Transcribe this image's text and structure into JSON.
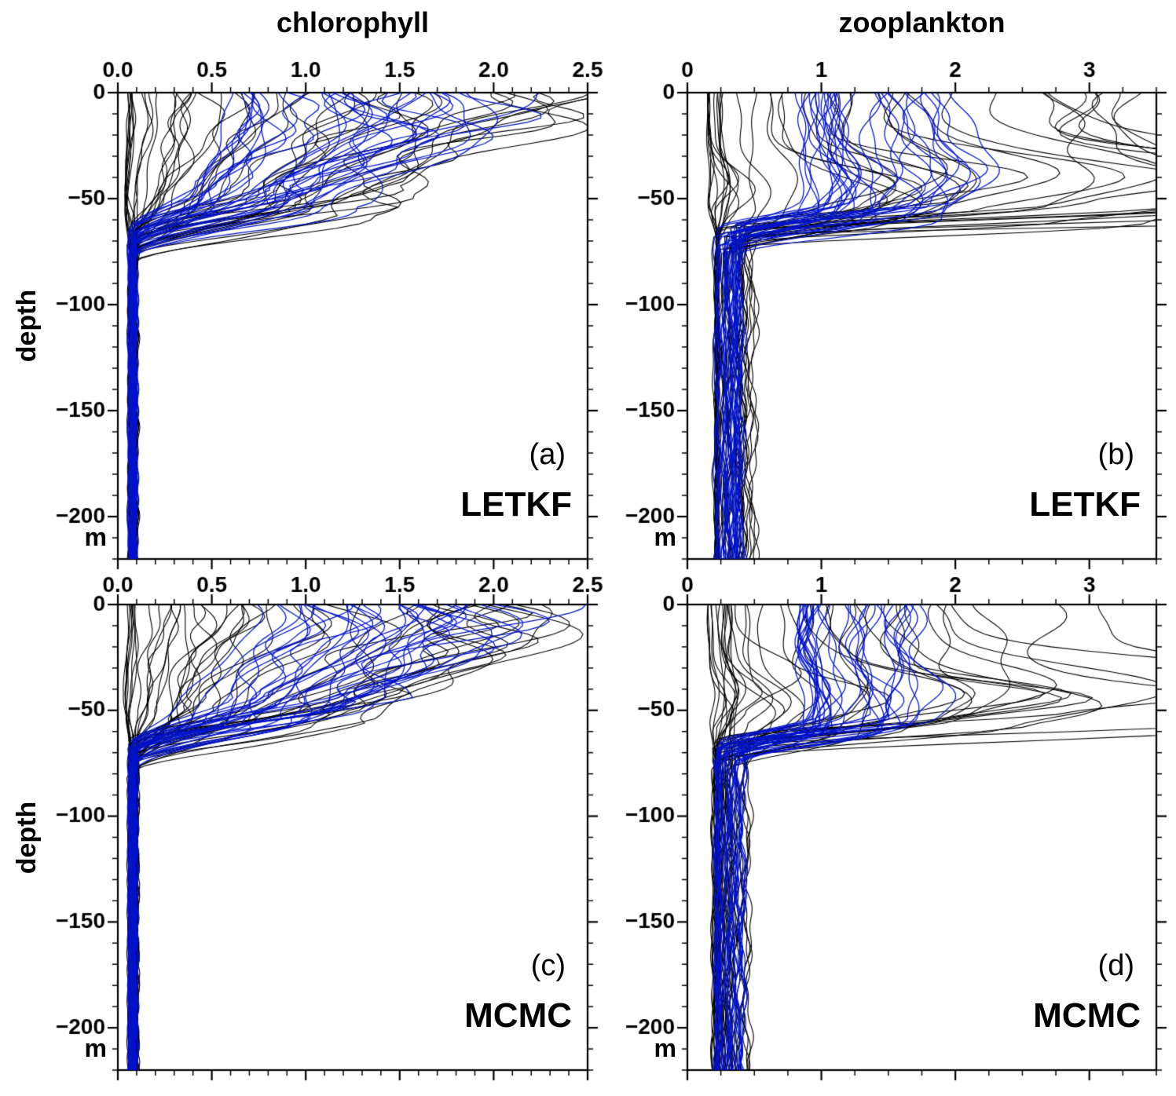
{
  "figure": {
    "ylabel": "depth",
    "y_unit_label": "m",
    "columns": [
      {
        "title": "chlorophyll"
      },
      {
        "title": "zooplankton"
      }
    ],
    "colors": {
      "frame": "#000000",
      "black_ensemble": "#000000",
      "blue_ensemble": "#0013cc"
    }
  },
  "chart_data": [
    {
      "panel": "a",
      "label": "(a)",
      "method": "LETKF",
      "variable": "chlorophyll",
      "type": "line",
      "xlim": [
        0,
        2.5
      ],
      "xticks": [
        0,
        0.5,
        1,
        1.5,
        2,
        2.5
      ],
      "xtick_labels": [
        "0.0",
        "0.5",
        "1.0",
        "1.5",
        "2.0",
        "2.5"
      ],
      "x_minor": 0.1,
      "ylim": [
        -220,
        0
      ],
      "yticks": [
        0,
        -50,
        -100,
        -150,
        -200
      ],
      "ytick_labels": [
        "0",
        "−50",
        "−100",
        "−150",
        "−200"
      ],
      "y_minor": 10,
      "x_labels_top": true,
      "x_labels_bottom": true,
      "ensemble": [
        {
          "name": "black-ensemble",
          "color": "#000000",
          "count": 46,
          "line_width": 1.1,
          "seed": 101,
          "surface": [
            0.05,
            2.15
          ],
          "surface_pow": 1.6,
          "deep": [
            0.055,
            0.105
          ],
          "mld": [
            -74,
            -56
          ],
          "noise": 0.11
        },
        {
          "name": "blue-ensemble",
          "color": "#0013cc",
          "count": 32,
          "line_width": 1.25,
          "seed": 202,
          "surface": [
            0.55,
            1.9
          ],
          "surface_pow": 1.2,
          "deep": [
            0.055,
            0.1
          ],
          "mld": [
            -70,
            -56
          ],
          "noise": 0.1
        }
      ]
    },
    {
      "panel": "b",
      "label": "(b)",
      "method": "LETKF",
      "variable": "zooplankton",
      "type": "line",
      "xlim": [
        0,
        3.5
      ],
      "xticks": [
        0,
        1,
        2,
        3
      ],
      "xtick_labels": [
        "0",
        "1",
        "2",
        "3"
      ],
      "x_minor": 0.25,
      "ylim": [
        -220,
        0
      ],
      "yticks": [
        0,
        -50,
        -100,
        -150,
        -200
      ],
      "ytick_labels": [
        "0",
        "−50",
        "−100",
        "−150",
        "−200"
      ],
      "y_minor": 10,
      "x_labels_top": true,
      "x_labels_bottom": true,
      "ensemble": [
        {
          "name": "black-ensemble",
          "color": "#000000",
          "count": 40,
          "line_width": 1.1,
          "seed": 303,
          "surface": [
            0.15,
            3.3
          ],
          "surface_pow": 2.0,
          "deep": [
            0.18,
            0.5
          ],
          "mld": [
            -60,
            -48
          ],
          "peak_amp": 1.5
        },
        {
          "name": "blue-ensemble",
          "color": "#0013cc",
          "count": 32,
          "line_width": 1.25,
          "seed": 404,
          "surface": [
            0.85,
            1.95
          ],
          "surface_pow": 1.6,
          "deep": [
            0.2,
            0.42
          ],
          "mld": [
            -58,
            -48
          ],
          "peak_amp": 0.3
        }
      ]
    },
    {
      "panel": "c",
      "label": "(c)",
      "method": "MCMC",
      "variable": "chlorophyll",
      "type": "line",
      "xlim": [
        0,
        2.5
      ],
      "xticks": [
        0,
        0.5,
        1,
        1.5,
        2,
        2.5
      ],
      "xtick_labels": [
        "0.0",
        "0.5",
        "1.0",
        "1.5",
        "2.0",
        "2.5"
      ],
      "x_minor": 0.1,
      "ylim": [
        -220,
        0
      ],
      "yticks": [
        0,
        -50,
        -100,
        -150,
        -200
      ],
      "ytick_labels": [
        "0",
        "−50",
        "−100",
        "−150",
        "−200"
      ],
      "y_minor": 10,
      "x_labels_top": false,
      "x_labels_bottom": false,
      "ensemble": [
        {
          "name": "black-ensemble",
          "color": "#000000",
          "count": 46,
          "line_width": 1.1,
          "seed": 505,
          "surface": [
            0.05,
            2.15
          ],
          "surface_pow": 1.6,
          "deep": [
            0.055,
            0.105
          ],
          "mld": [
            -74,
            -56
          ],
          "noise": 0.11
        },
        {
          "name": "blue-ensemble",
          "color": "#0013cc",
          "count": 32,
          "line_width": 1.25,
          "seed": 606,
          "surface": [
            0.6,
            1.9
          ],
          "surface_pow": 1.2,
          "deep": [
            0.055,
            0.1
          ],
          "mld": [
            -70,
            -56
          ],
          "noise": 0.1
        }
      ]
    },
    {
      "panel": "d",
      "label": "(d)",
      "method": "MCMC",
      "variable": "zooplankton",
      "type": "line",
      "xlim": [
        0,
        3.5
      ],
      "xticks": [
        0,
        1,
        2,
        3
      ],
      "xtick_labels": [
        "0",
        "1",
        "2",
        "3"
      ],
      "x_minor": 0.25,
      "ylim": [
        -220,
        0
      ],
      "yticks": [
        0,
        -50,
        -100,
        -150,
        -200
      ],
      "ytick_labels": [
        "0",
        "−50",
        "−100",
        "−150",
        "−200"
      ],
      "y_minor": 10,
      "x_labels_top": false,
      "x_labels_bottom": false,
      "ensemble": [
        {
          "name": "black-ensemble",
          "color": "#000000",
          "count": 40,
          "line_width": 1.1,
          "seed": 707,
          "surface": [
            0.15,
            3.3
          ],
          "surface_pow": 2.0,
          "deep": [
            0.18,
            0.5
          ],
          "mld": [
            -60,
            -48
          ],
          "peak_amp": 1.5
        },
        {
          "name": "blue-ensemble",
          "color": "#0013cc",
          "count": 32,
          "line_width": 1.25,
          "seed": 808,
          "surface": [
            0.85,
            1.8
          ],
          "surface_pow": 2.0,
          "deep": [
            0.2,
            0.42
          ],
          "mld": [
            -58,
            -48
          ],
          "peak_amp": 0.25
        }
      ]
    }
  ]
}
